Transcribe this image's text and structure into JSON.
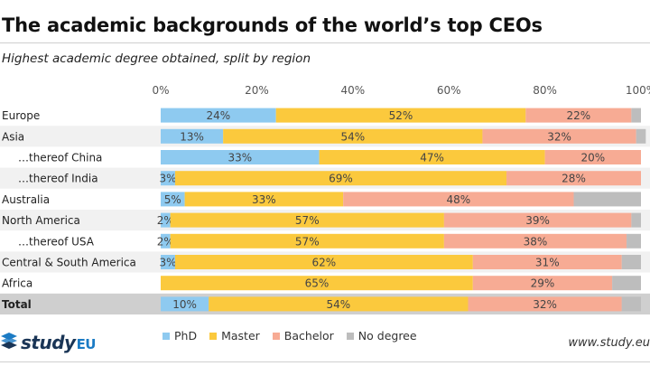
{
  "chart_data": {
    "type": "bar",
    "orientation": "horizontal",
    "stacked": true,
    "title": "The academic backgrounds of the world’s top CEOs",
    "subtitle": "Highest academic degree obtained, split by region",
    "categories": [
      "Europe",
      "Asia",
      "…thereof China",
      "…thereof India",
      "Australia",
      "North America",
      "…thereof USA",
      "Central & South America",
      "Africa",
      "Total"
    ],
    "indented": [
      false,
      false,
      true,
      true,
      false,
      false,
      true,
      false,
      false,
      false
    ],
    "bold": [
      false,
      false,
      false,
      false,
      false,
      false,
      false,
      false,
      false,
      true
    ],
    "series": [
      {
        "name": "PhD",
        "color": "#8ecaf0",
        "values": [
          24,
          13,
          33,
          3,
          5,
          2,
          2,
          3,
          0,
          10
        ]
      },
      {
        "name": "Master",
        "color": "#fbc93d",
        "values": [
          52,
          54,
          47,
          69,
          33,
          57,
          57,
          62,
          65,
          54
        ]
      },
      {
        "name": "Bachelor",
        "color": "#f7ab94",
        "values": [
          22,
          32,
          20,
          28,
          48,
          39,
          38,
          31,
          29,
          32
        ]
      },
      {
        "name": "No degree",
        "color": "#bdbdbd",
        "values": [
          2,
          2,
          0,
          0,
          14,
          2,
          3,
          4,
          6,
          4
        ]
      }
    ],
    "data_labels": [
      [
        "24%",
        "52%",
        "22%",
        ""
      ],
      [
        "13%",
        "54%",
        "32%",
        ""
      ],
      [
        "33%",
        "47%",
        "20%",
        ""
      ],
      [
        "3%",
        "69%",
        "28%",
        ""
      ],
      [
        "5%",
        "33%",
        "48%",
        ""
      ],
      [
        "2%",
        "57%",
        "39%",
        ""
      ],
      [
        "2%",
        "57%",
        "38%",
        ""
      ],
      [
        "3%",
        "62%",
        "31%",
        ""
      ],
      [
        "",
        "65%",
        "29%",
        ""
      ],
      [
        "10%",
        "54%",
        "32%",
        ""
      ]
    ],
    "xlim": [
      0,
      100
    ],
    "xticks": [
      "0%",
      "20%",
      "40%",
      "60%",
      "80%",
      "100%"
    ],
    "grid": false,
    "legend": "bottom"
  },
  "branding": {
    "logo_text": "study",
    "logo_suffix": "EU",
    "source": "www.study.eu"
  }
}
